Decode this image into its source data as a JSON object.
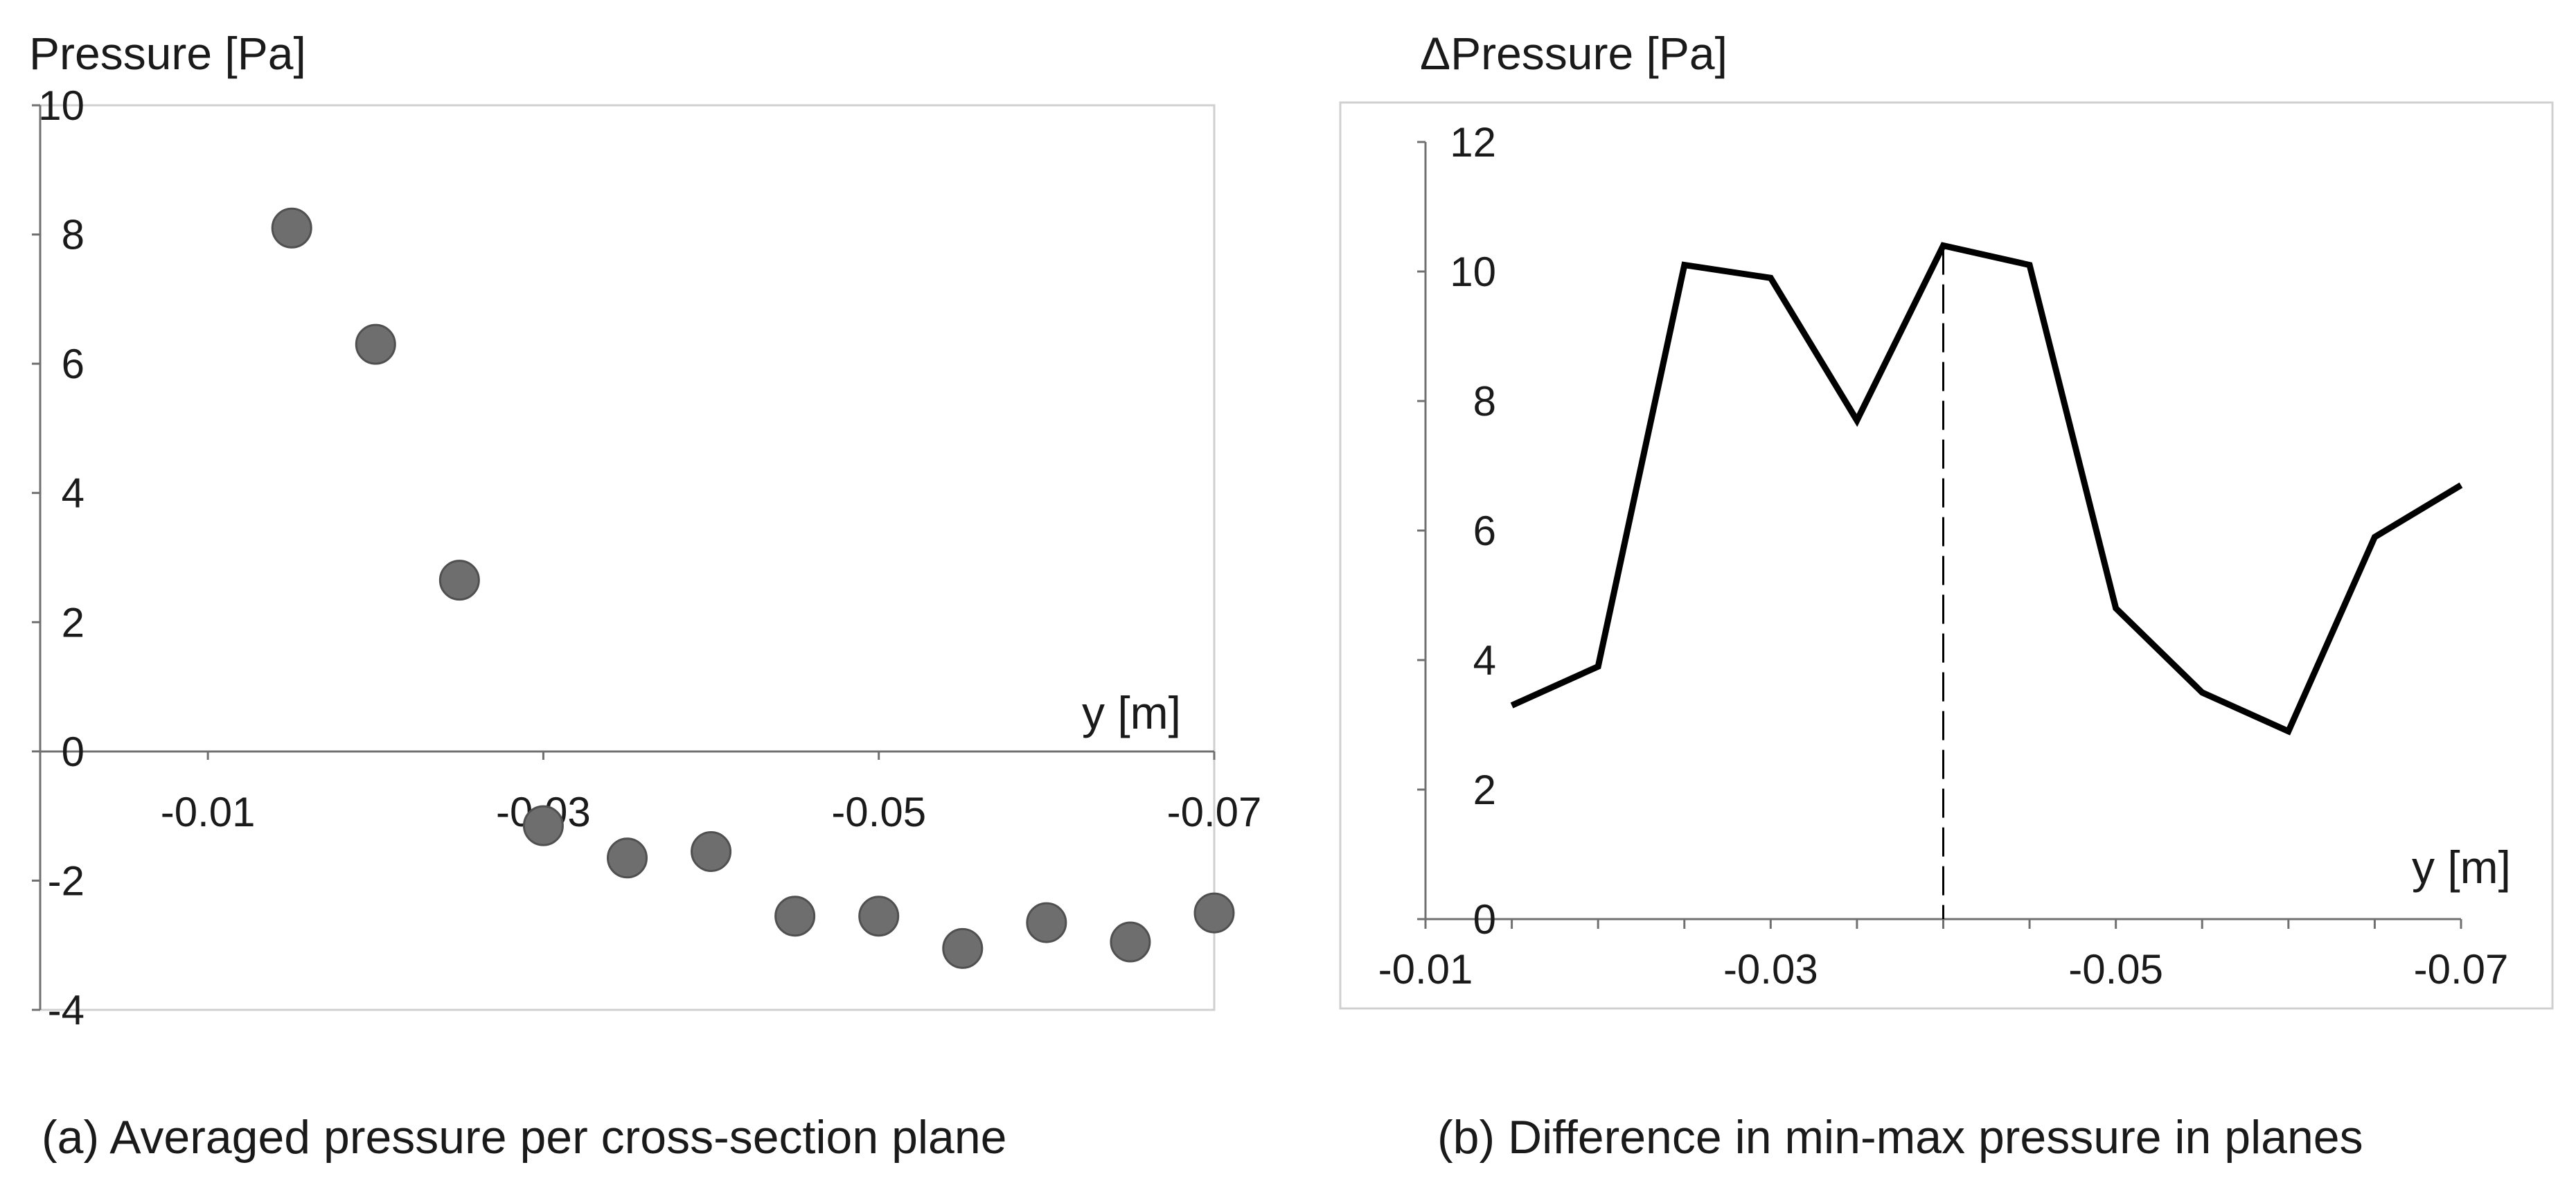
{
  "chart_data": [
    {
      "type": "scatter",
      "ylabel": "Pressure [Pa]",
      "xlabel": "y [m]",
      "caption": "(a) Averaged pressure per cross-section plane",
      "xlim": [
        0.0,
        -0.07
      ],
      "ylim": [
        -4,
        10
      ],
      "x_ticks": [
        -0.01,
        -0.03,
        -0.05,
        -0.07
      ],
      "x_tick_labels": [
        "-0.01",
        "-0.03",
        "-0.05",
        "-0.07"
      ],
      "y_ticks": [
        -4,
        -2,
        0,
        2,
        4,
        6,
        8,
        10
      ],
      "y_tick_labels": [
        "-4",
        "-2",
        "0",
        "2",
        "4",
        "6",
        "8",
        "10"
      ],
      "grid": false,
      "marker_color": "#6e6e6e",
      "points": [
        {
          "x": -0.015,
          "y": 8.1
        },
        {
          "x": -0.02,
          "y": 6.3
        },
        {
          "x": -0.025,
          "y": 2.65
        },
        {
          "x": -0.03,
          "y": -1.15
        },
        {
          "x": -0.035,
          "y": -1.65
        },
        {
          "x": -0.04,
          "y": -1.55
        },
        {
          "x": -0.045,
          "y": -2.55
        },
        {
          "x": -0.05,
          "y": -2.55
        },
        {
          "x": -0.055,
          "y": -3.05
        },
        {
          "x": -0.06,
          "y": -2.65
        },
        {
          "x": -0.065,
          "y": -2.95
        },
        {
          "x": -0.07,
          "y": -2.5
        }
      ]
    },
    {
      "type": "line",
      "ylabel": "ΔPressure [Pa]",
      "xlabel": "y [m]",
      "caption": "(b) Difference in min-max pressure in planes",
      "xlim": [
        -0.01,
        -0.07
      ],
      "ylim": [
        0,
        12
      ],
      "x_ticks": [
        -0.01,
        -0.03,
        -0.05,
        -0.07
      ],
      "x_tick_labels": [
        "-0.01",
        "-0.03",
        "-0.05",
        "-0.07"
      ],
      "y_ticks": [
        0,
        2,
        4,
        6,
        8,
        10,
        12
      ],
      "y_tick_labels": [
        "0",
        "2",
        "4",
        "6",
        "8",
        "10",
        "12"
      ],
      "grid": false,
      "line_color": "#000000",
      "x": [
        -0.015,
        -0.02,
        -0.025,
        -0.03,
        -0.035,
        -0.04,
        -0.045,
        -0.05,
        -0.055,
        -0.06,
        -0.065,
        -0.07
      ],
      "values": [
        3.3,
        3.9,
        10.1,
        9.9,
        7.7,
        10.4,
        10.1,
        4.8,
        3.5,
        2.9,
        5.9,
        6.7
      ],
      "reference_line": {
        "x": -0.04,
        "style": "dashed"
      }
    }
  ]
}
